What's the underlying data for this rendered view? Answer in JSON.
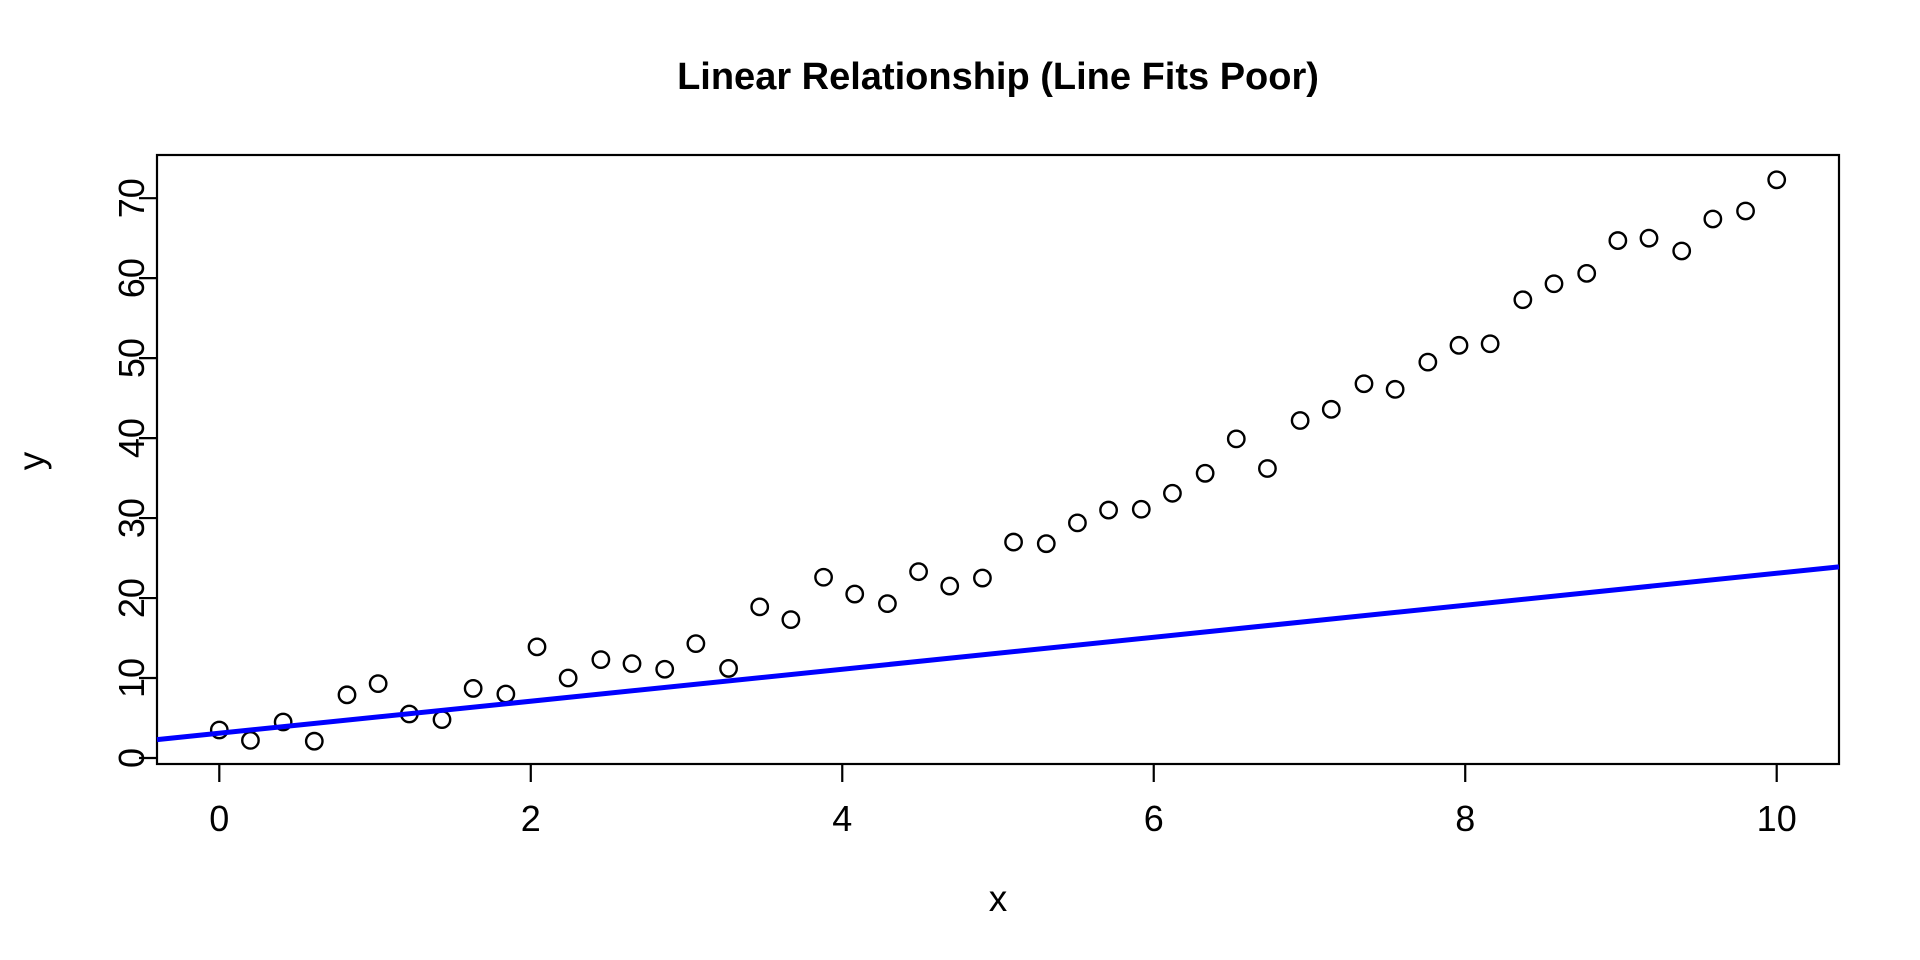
{
  "page": {
    "background": "#FFFFFF",
    "foreground": "#000000"
  },
  "chart_data": {
    "type": "scatter",
    "title": "Linear Relationship (Line Fits Poor)",
    "xlabel": "x",
    "ylabel": "y",
    "xlim": [
      -0.4,
      10.4
    ],
    "ylim": [
      -0.75,
      75.4
    ],
    "x_ticks": [
      0,
      2,
      4,
      6,
      8,
      10
    ],
    "y_ticks": [
      0,
      10,
      20,
      30,
      40,
      50,
      60,
      70
    ],
    "grid": false,
    "legend_position": "none",
    "point_color": "#000000",
    "point_shape": "open-circle",
    "fit_line": {
      "slope": 2.0,
      "intercept": 3.1,
      "color": "#0000FF",
      "extends_full_width": true
    },
    "points": [
      [
        0.0,
        3.5
      ],
      [
        0.2,
        2.2
      ],
      [
        0.41,
        4.5
      ],
      [
        0.61,
        2.1
      ],
      [
        0.82,
        7.9
      ],
      [
        1.02,
        9.3
      ],
      [
        1.22,
        5.5
      ],
      [
        1.43,
        4.8
      ],
      [
        1.63,
        8.7
      ],
      [
        1.84,
        8.0
      ],
      [
        2.04,
        13.9
      ],
      [
        2.24,
        10.0
      ],
      [
        2.45,
        12.3
      ],
      [
        2.65,
        11.8
      ],
      [
        2.86,
        11.1
      ],
      [
        3.06,
        14.3
      ],
      [
        3.27,
        11.2
      ],
      [
        3.47,
        18.9
      ],
      [
        3.67,
        17.3
      ],
      [
        3.88,
        22.6
      ],
      [
        4.08,
        20.5
      ],
      [
        4.29,
        19.3
      ],
      [
        4.49,
        23.3
      ],
      [
        4.69,
        21.5
      ],
      [
        4.9,
        22.5
      ],
      [
        5.1,
        27.0
      ],
      [
        5.31,
        26.8
      ],
      [
        5.51,
        29.4
      ],
      [
        5.71,
        31.0
      ],
      [
        5.92,
        31.1
      ],
      [
        6.12,
        33.1
      ],
      [
        6.33,
        35.6
      ],
      [
        6.53,
        39.9
      ],
      [
        6.73,
        36.2
      ],
      [
        6.94,
        42.2
      ],
      [
        7.14,
        43.6
      ],
      [
        7.35,
        46.8
      ],
      [
        7.55,
        46.1
      ],
      [
        7.76,
        49.5
      ],
      [
        7.96,
        51.6
      ],
      [
        8.16,
        51.8
      ],
      [
        8.37,
        57.3
      ],
      [
        8.57,
        59.3
      ],
      [
        8.78,
        60.6
      ],
      [
        8.98,
        64.7
      ],
      [
        9.18,
        65.0
      ],
      [
        9.39,
        63.4
      ],
      [
        9.59,
        67.4
      ],
      [
        9.8,
        68.4
      ],
      [
        10.0,
        72.3
      ]
    ]
  }
}
